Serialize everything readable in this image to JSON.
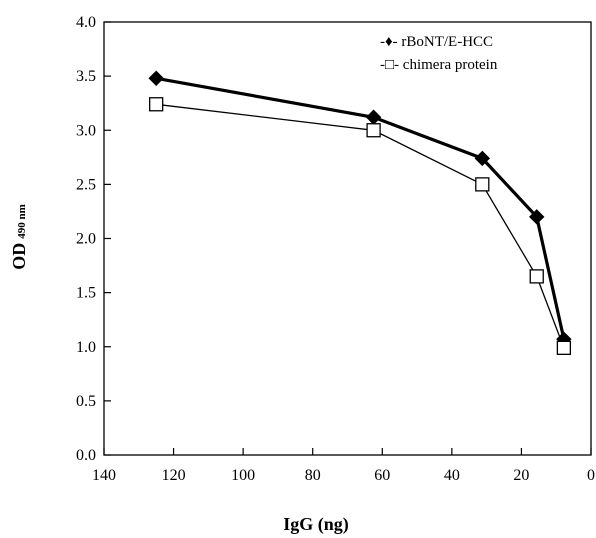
{
  "chart_data": {
    "type": "line",
    "xlabel": "IgG (ng)",
    "ylabel_main": "OD",
    "ylabel_sub": "490 nm",
    "x_reversed": true,
    "xlim": [
      0,
      140
    ],
    "ylim": [
      0.0,
      4.0
    ],
    "x_ticks": [
      "140",
      "120",
      "100",
      "80",
      "60",
      "40",
      "20",
      "0"
    ],
    "y_ticks": [
      "0.0",
      "0.5",
      "1.0",
      "1.5",
      "2.0",
      "2.5",
      "3.0",
      "3.5",
      "4.0"
    ],
    "grid": false,
    "legend_position": "top-right",
    "x": [
      125,
      62.5,
      31.25,
      15.6,
      7.8
    ],
    "series": [
      {
        "name": "rBoNT/E-HCC",
        "legend_text": "-♦- rBoNT/E-HCC",
        "marker": "diamond-filled",
        "color": "#000000",
        "values": [
          3.48,
          3.12,
          2.74,
          2.2,
          1.07
        ]
      },
      {
        "name": "chimera protein",
        "legend_text": "-□- chimera protein",
        "marker": "square-open",
        "color": "#000000",
        "values": [
          3.24,
          3.0,
          2.5,
          1.65,
          0.99
        ]
      }
    ]
  }
}
